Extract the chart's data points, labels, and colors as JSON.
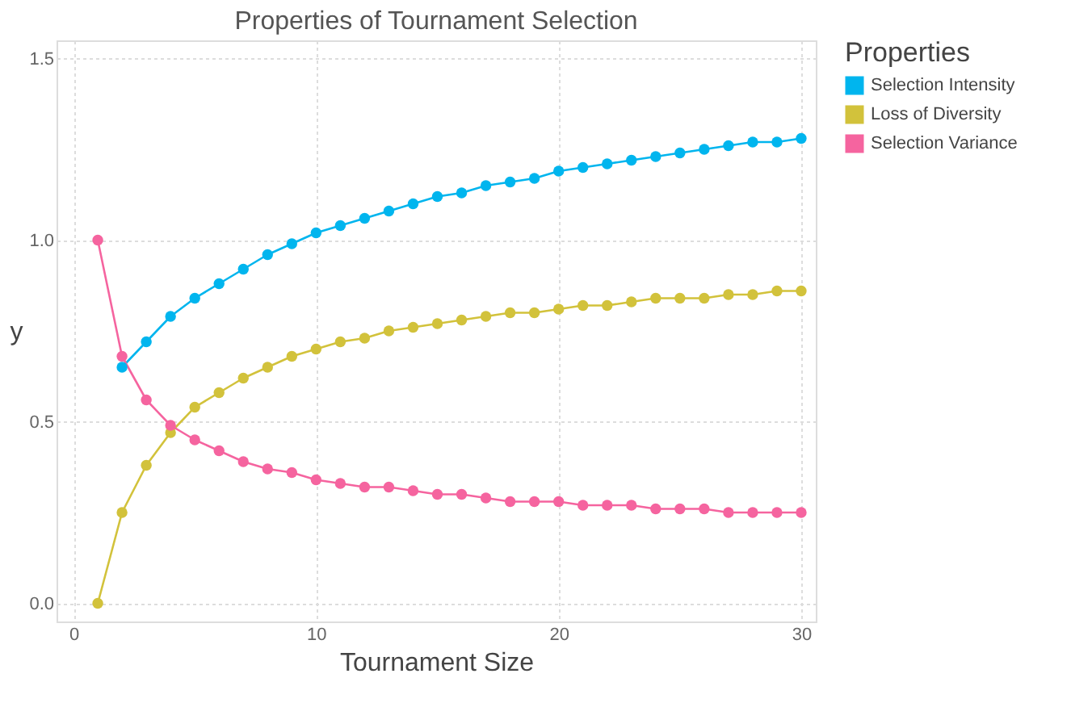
{
  "chart_data": {
    "type": "line",
    "title": "Properties of Tournament Selection",
    "xlabel": "Tournament Size",
    "ylabel": "y",
    "legend_title": "Properties",
    "x": [
      1,
      2,
      3,
      4,
      5,
      6,
      7,
      8,
      9,
      10,
      11,
      12,
      13,
      14,
      15,
      16,
      17,
      18,
      19,
      20,
      21,
      22,
      23,
      24,
      25,
      26,
      27,
      28,
      29,
      30
    ],
    "series": [
      {
        "name": "Selection Intensity",
        "color": "#00b5ee",
        "values": [
          null,
          0.65,
          0.72,
          0.79,
          0.84,
          0.88,
          0.92,
          0.96,
          0.99,
          1.02,
          1.04,
          1.06,
          1.08,
          1.1,
          1.12,
          1.13,
          1.15,
          1.16,
          1.17,
          1.19,
          1.2,
          1.21,
          1.22,
          1.23,
          1.24,
          1.25,
          1.26,
          1.27,
          1.27,
          1.28
        ]
      },
      {
        "name": "Loss of Diversity",
        "color": "#d2c23b",
        "values": [
          0,
          0.25,
          0.38,
          0.47,
          0.54,
          0.58,
          0.62,
          0.65,
          0.68,
          0.7,
          0.72,
          0.73,
          0.75,
          0.76,
          0.77,
          0.78,
          0.79,
          0.8,
          0.8,
          0.81,
          0.82,
          0.82,
          0.83,
          0.84,
          0.84,
          0.84,
          0.85,
          0.85,
          0.86,
          0.86
        ]
      },
      {
        "name": "Selection Variance",
        "color": "#f5649f",
        "values": [
          1.0,
          0.68,
          0.56,
          0.49,
          0.45,
          0.42,
          0.39,
          0.37,
          0.36,
          0.34,
          0.33,
          0.32,
          0.32,
          0.31,
          0.3,
          0.3,
          0.29,
          0.28,
          0.28,
          0.28,
          0.27,
          0.27,
          0.27,
          0.26,
          0.26,
          0.26,
          0.25,
          0.25,
          0.25,
          0.25
        ]
      }
    ],
    "xlim": [
      -0.7,
      30.6
    ],
    "xticks": [
      0,
      10,
      20,
      30
    ],
    "ylim": [
      -0.05,
      1.55
    ],
    "yticks": [
      {
        "value": 0,
        "label": "0.0"
      },
      0.5,
      {
        "value": 1,
        "label": "1.0"
      },
      1.5
    ],
    "grid": true,
    "legend": "right",
    "marker": "circle",
    "line_style": "solid"
  }
}
